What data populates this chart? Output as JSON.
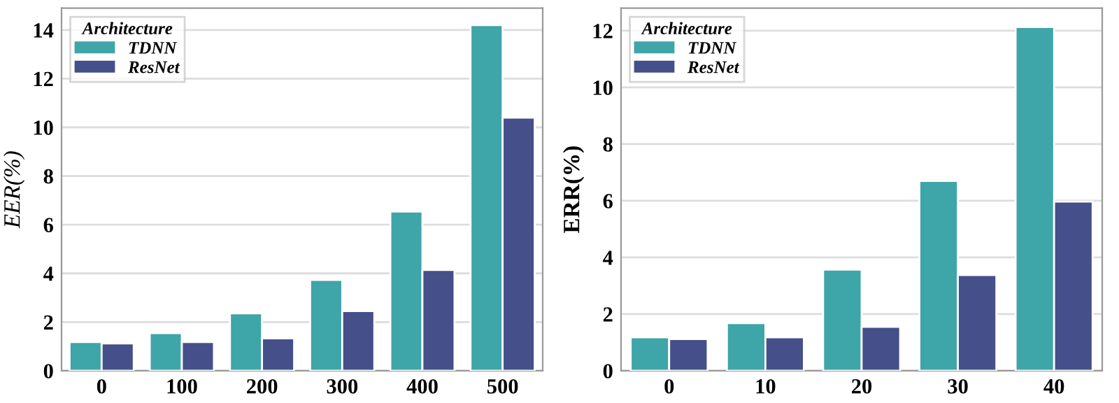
{
  "chart_data": [
    {
      "type": "bar",
      "categories": [
        "0",
        "100",
        "200",
        "300",
        "400",
        "500"
      ],
      "ylabel": "EER(%)",
      "legend_title": "Architecture",
      "legend": "top left",
      "grid": "y",
      "ylim": [
        0,
        14.9
      ],
      "yticks": [
        0,
        2,
        4,
        6,
        8,
        10,
        12,
        14
      ],
      "series": [
        {
          "name": "TDNN",
          "color": "#3ea5a8",
          "values": [
            1.18,
            1.55,
            2.36,
            3.73,
            6.54,
            14.2
          ]
        },
        {
          "name": "ResNet",
          "color": "#454f89",
          "values": [
            1.12,
            1.18,
            1.33,
            2.45,
            4.14,
            10.4
          ]
        }
      ]
    },
    {
      "type": "bar",
      "categories": [
        "0",
        "10",
        "20",
        "30",
        "40"
      ],
      "ylabel": "ERR(%)",
      "legend_title": "Architecture",
      "legend": "top left",
      "grid": "y",
      "ylim": [
        0,
        12.8
      ],
      "yticks": [
        0,
        2,
        4,
        6,
        8,
        10,
        12
      ],
      "series": [
        {
          "name": "TDNN",
          "color": "#3ea5a8",
          "values": [
            1.18,
            1.68,
            3.57,
            6.7,
            12.13
          ]
        },
        {
          "name": "ResNet",
          "color": "#454f89",
          "values": [
            1.12,
            1.18,
            1.55,
            3.38,
            5.97
          ]
        }
      ]
    }
  ]
}
